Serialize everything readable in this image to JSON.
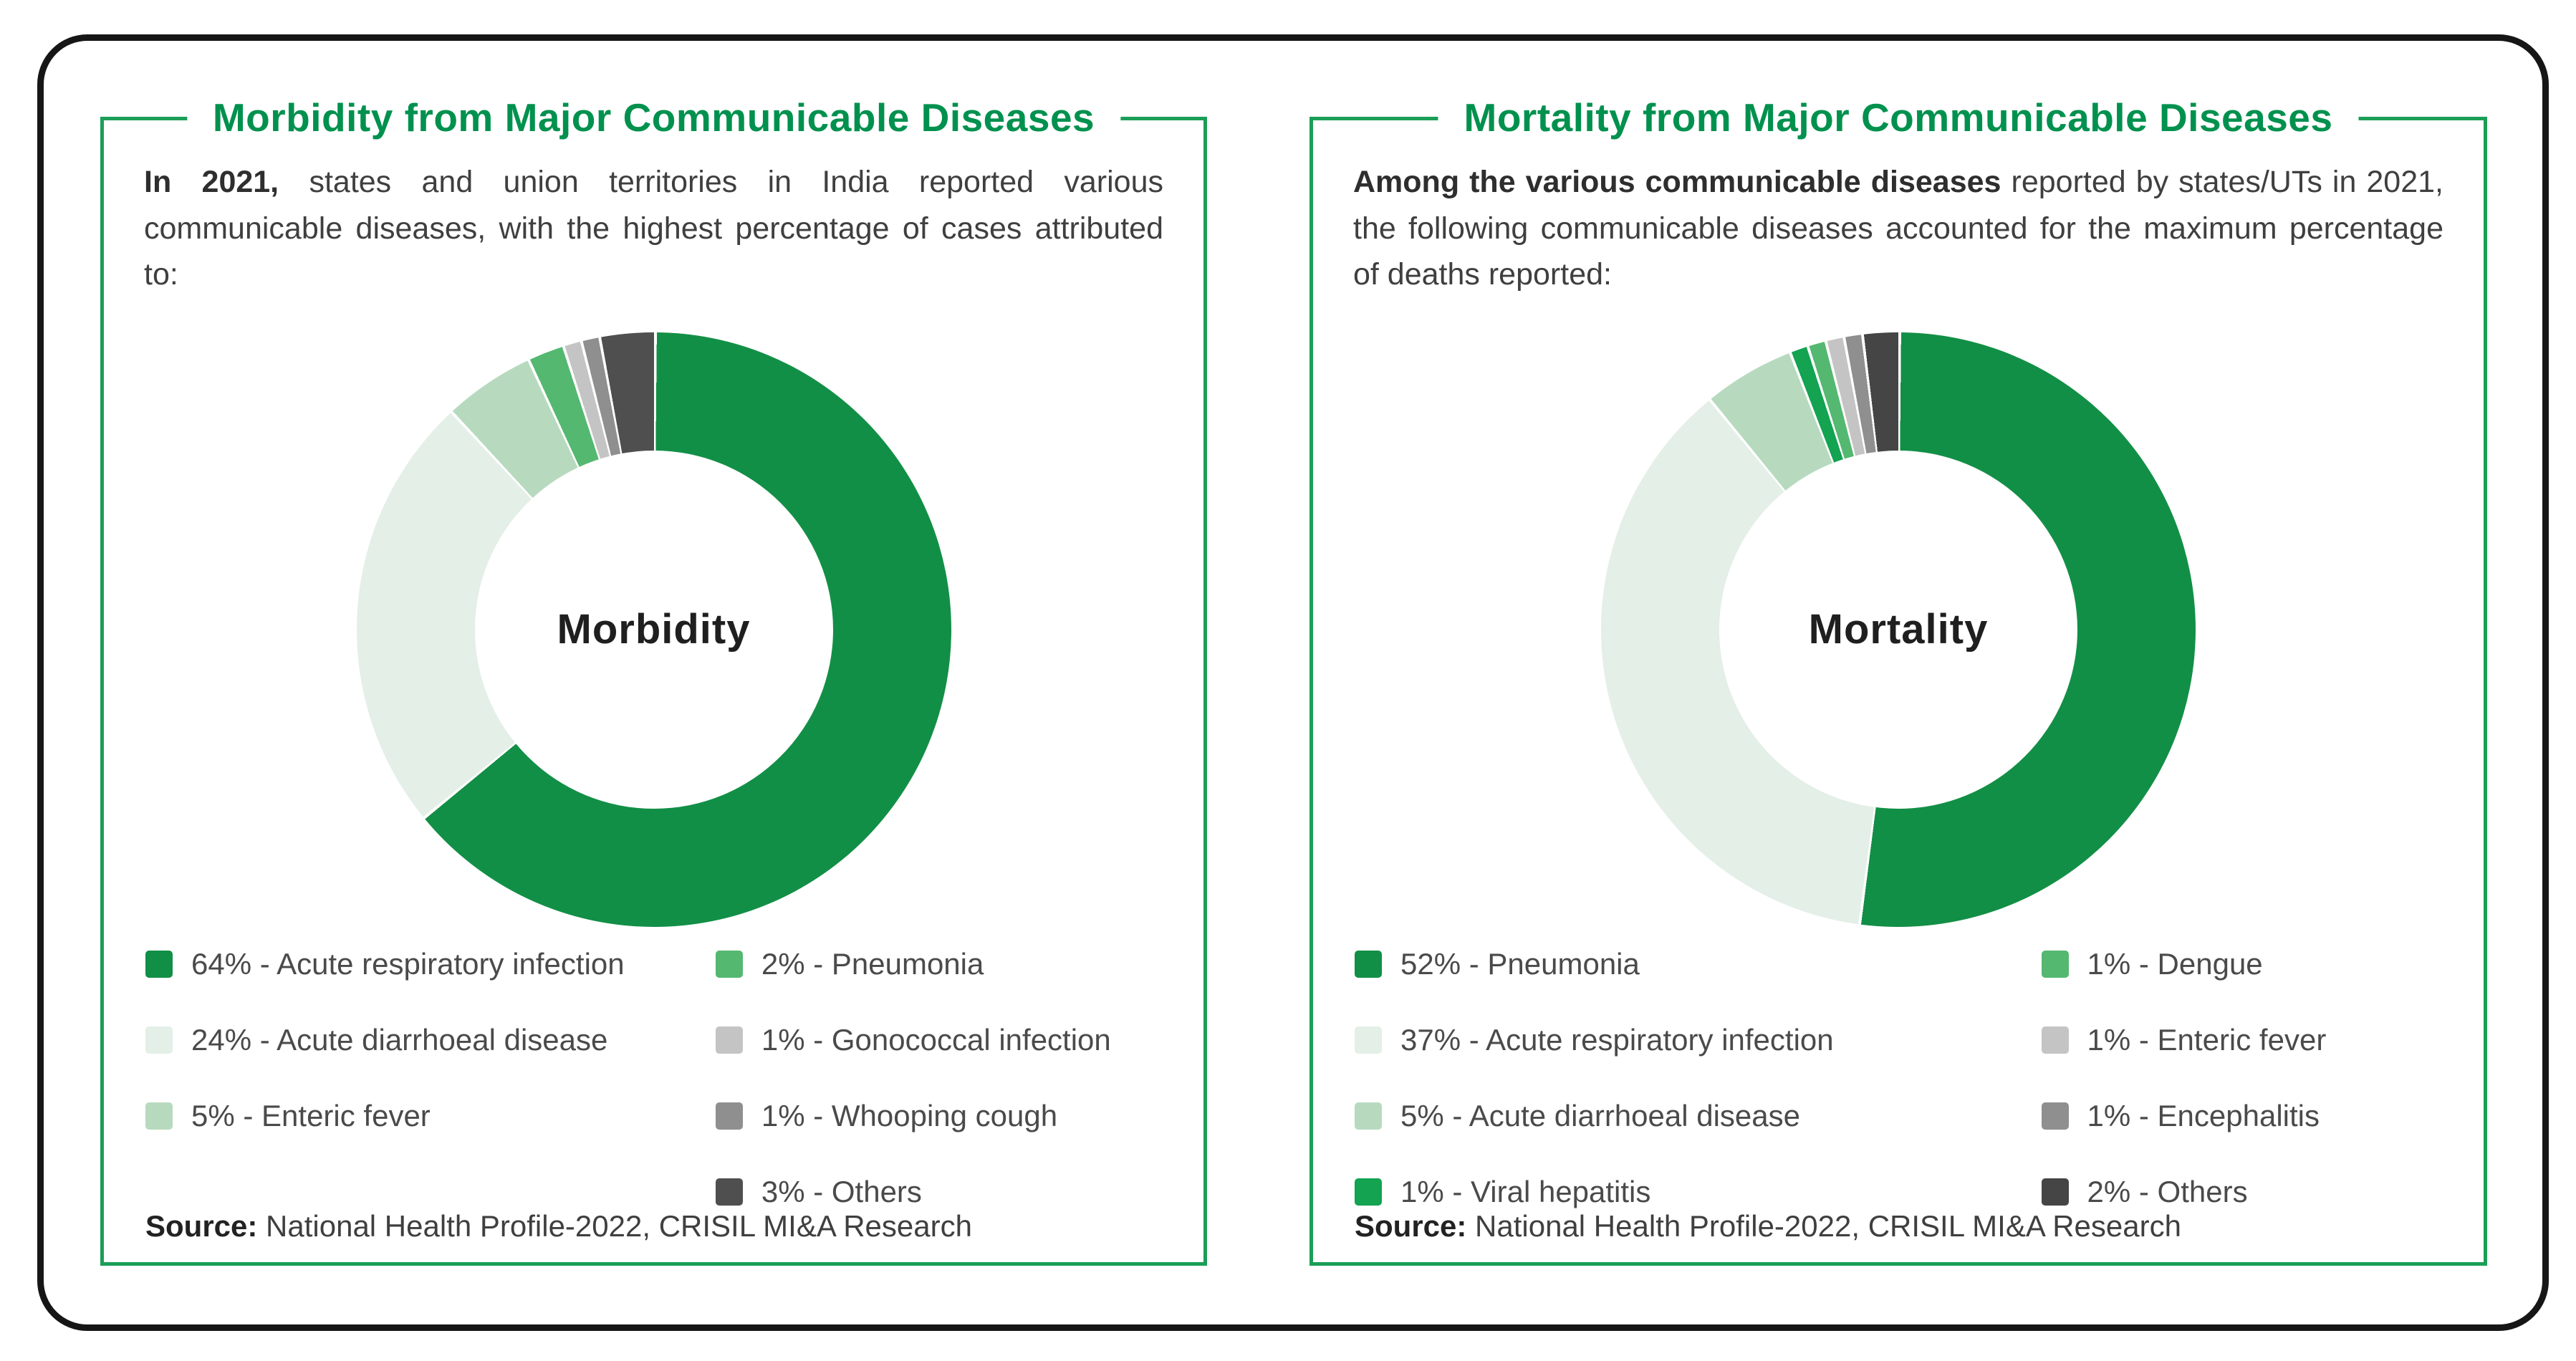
{
  "colors": {
    "brand_green": "#00914e",
    "panel_border": "#1b9e57",
    "outer_border": "#161616"
  },
  "panels": [
    {
      "title": "Morbidity from Major Communicable Diseases",
      "intro_bold": "In 2021,",
      "intro_rest": " states and union territories in India reported various communicable diseases, with the highest percentage of cases attributed to:",
      "center_label": "Morbidity",
      "legend_split": 3,
      "source_label": "Source:",
      "source_text": " National Health Profile-2022, CRISIL MI&A Research"
    },
    {
      "title": "Mortality from Major Communicable Diseases",
      "intro_bold": "Among the various communicable diseases",
      "intro_rest": " reported by states/UTs in 2021, the following communicable diseases accounted for the maximum percentage of deaths reported:",
      "center_label": "Mortality",
      "legend_split": 4,
      "source_label": "Source:",
      "source_text": " National Health Profile-2022, CRISIL MI&A Research"
    }
  ],
  "chart_data": [
    {
      "type": "pie",
      "subtype": "donut",
      "title": "Morbidity",
      "center_label": "Morbidity",
      "unit": "%",
      "start_angle_deg": 0,
      "direction": "clockwise",
      "legend_position": "bottom",
      "labels": [
        "Acute respiratory infection",
        "Acute diarrhoeal disease",
        "Enteric fever",
        "Pneumonia",
        "Gonococcal infection",
        "Whooping cough",
        "Others"
      ],
      "values": [
        64,
        24,
        5,
        2,
        1,
        1,
        3
      ],
      "colors": [
        "#128f46",
        "#e4efe7",
        "#b7dabf",
        "#54b871",
        "#c4c4c4",
        "#8f8f8f",
        "#4f4f4f"
      ]
    },
    {
      "type": "pie",
      "subtype": "donut",
      "title": "Mortality",
      "center_label": "Mortality",
      "unit": "%",
      "start_angle_deg": 0,
      "direction": "clockwise",
      "legend_position": "bottom",
      "labels": [
        "Pneumonia",
        "Acute respiratory infection",
        "Acute diarrhoeal disease",
        "Viral hepatitis",
        "Dengue",
        "Enteric fever",
        "Encephalitis",
        "Others"
      ],
      "values": [
        52,
        37,
        5,
        1,
        1,
        1,
        1,
        2
      ],
      "colors": [
        "#128f46",
        "#e4efe7",
        "#b7dabf",
        "#13a351",
        "#54b871",
        "#c4c4c4",
        "#8f8f8f",
        "#454545"
      ]
    }
  ]
}
